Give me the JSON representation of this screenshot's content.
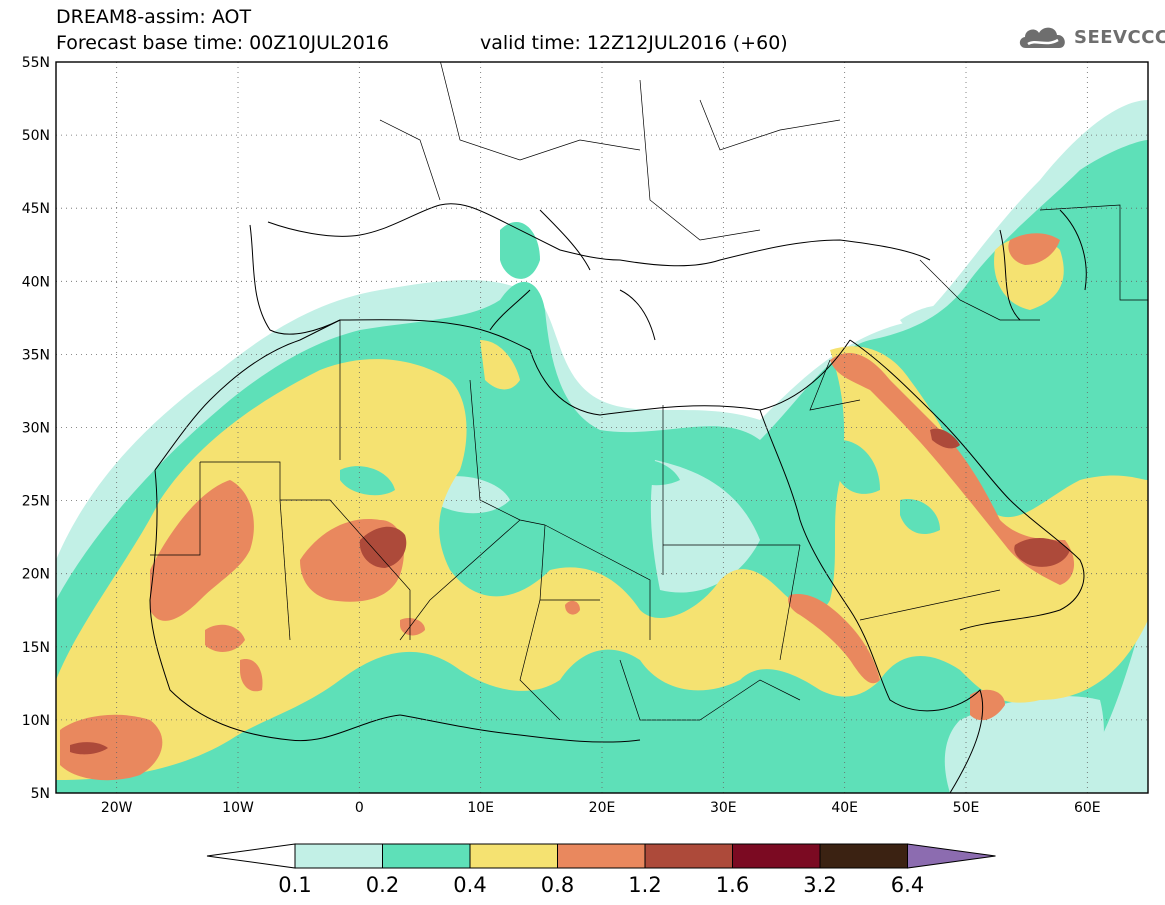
{
  "header": {
    "title": "DREAM8-assim: AOT",
    "base_time": "Forecast base time: 00Z10JUL2016",
    "valid_time": "valid time: 12Z12JUL2016 (+60)"
  },
  "logo": {
    "text": "SEEVCCC",
    "icon": "cloud-icon",
    "color": "#6e6e6e"
  },
  "map": {
    "lat_labels": [
      "55N",
      "50N",
      "45N",
      "40N",
      "35N",
      "30N",
      "25N",
      "20N",
      "15N",
      "10N",
      "5N"
    ],
    "lon_labels": [
      "20W",
      "10W",
      "0",
      "10E",
      "20E",
      "30E",
      "40E",
      "50E",
      "60E"
    ],
    "lon_range": [
      -25,
      65
    ],
    "lat_range": [
      5,
      55
    ],
    "grid": "dotted"
  },
  "colorbar": {
    "levels": [
      "0.1",
      "0.2",
      "0.4",
      "0.8",
      "1.2",
      "1.6",
      "3.2",
      "6.4"
    ],
    "colors": [
      "#ffffff",
      "#c2f0e6",
      "#5ee0b8",
      "#f5e271",
      "#e9885e",
      "#ad4a3a",
      "#7b0a22",
      "#3b2212",
      "#8c6cb0"
    ]
  }
}
